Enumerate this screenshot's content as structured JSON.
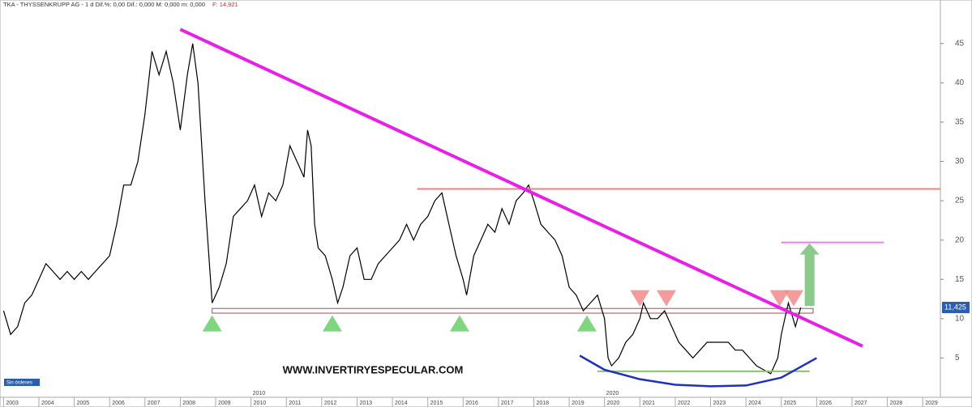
{
  "chart_data": {
    "type": "line",
    "title": "TKA - THYSSENKRUPP AG - 1 d  Dif.%: 0,00  Dif.: 0,000  M: 0,000  m: 0,000",
    "close_label": "F: 14,921",
    "watermark": "WWW.INVERTIRYESPECULAR.COM",
    "orders_label": "Sin órdenes",
    "era_labels": [
      {
        "x": 2010,
        "label": "2010"
      },
      {
        "x": 2020,
        "label": "2020"
      }
    ],
    "x": [
      2003.0,
      2003.2,
      2003.4,
      2003.6,
      2003.8,
      2004.0,
      2004.2,
      2004.4,
      2004.6,
      2004.8,
      2005.0,
      2005.2,
      2005.4,
      2005.6,
      2005.8,
      2006.0,
      2006.2,
      2006.4,
      2006.6,
      2006.8,
      2007.0,
      2007.2,
      2007.4,
      2007.6,
      2007.8,
      2008.0,
      2008.2,
      2008.35,
      2008.5,
      2008.7,
      2008.9,
      2009.1,
      2009.3,
      2009.5,
      2009.7,
      2009.9,
      2010.1,
      2010.3,
      2010.5,
      2010.7,
      2010.9,
      2011.1,
      2011.3,
      2011.5,
      2011.6,
      2011.7,
      2011.8,
      2011.9,
      2012.1,
      2012.3,
      2012.45,
      2012.6,
      2012.8,
      2013.0,
      2013.2,
      2013.4,
      2013.6,
      2013.8,
      2014.0,
      2014.2,
      2014.4,
      2014.6,
      2014.8,
      2015.0,
      2015.2,
      2015.4,
      2015.6,
      2015.8,
      2016.0,
      2016.1,
      2016.3,
      2016.5,
      2016.7,
      2016.9,
      2017.1,
      2017.3,
      2017.5,
      2017.7,
      2017.85,
      2018.0,
      2018.2,
      2018.4,
      2018.6,
      2018.8,
      2019.0,
      2019.2,
      2019.4,
      2019.6,
      2019.8,
      2020.0,
      2020.1,
      2020.2,
      2020.4,
      2020.6,
      2020.8,
      2021.0,
      2021.1,
      2021.3,
      2021.5,
      2021.7,
      2021.9,
      2022.1,
      2022.3,
      2022.5,
      2022.7,
      2022.9,
      2023.1,
      2023.3,
      2023.5,
      2023.7,
      2023.9,
      2024.1,
      2024.3,
      2024.5,
      2024.7,
      2024.9,
      2025.0,
      2025.1,
      2025.2,
      2025.4,
      2025.55
    ],
    "series": [
      {
        "name": "TKA",
        "color": "#000000",
        "values": [
          11,
          8,
          9,
          12,
          13,
          15,
          17,
          16,
          15,
          16,
          15,
          16,
          15,
          16,
          17,
          18,
          22,
          27,
          27,
          30,
          36,
          44,
          41,
          44,
          40,
          34,
          41,
          45,
          40,
          25,
          12,
          14,
          17,
          23,
          24,
          25,
          27,
          23,
          26,
          25,
          27,
          32,
          30,
          28,
          34,
          32,
          22,
          19,
          18,
          15,
          12,
          14,
          18,
          19,
          15,
          15,
          17,
          18,
          19,
          20,
          22,
          20,
          22,
          23,
          25,
          26,
          22,
          18,
          15,
          13,
          18,
          20,
          22,
          21,
          24,
          22,
          25,
          26,
          27,
          25,
          22,
          21,
          20,
          18,
          14,
          13,
          11,
          12,
          13,
          10,
          5,
          4,
          5,
          7,
          8,
          10,
          12,
          10,
          10,
          11,
          9,
          7,
          6,
          5,
          6,
          7,
          7,
          7,
          7,
          6,
          6,
          5,
          4,
          3.5,
          3,
          5,
          8,
          10,
          12,
          9,
          11.4
        ]
      }
    ],
    "last_price": {
      "value": 11.425,
      "label": "11,425"
    },
    "xlim": [
      2002.9,
      2029.5
    ],
    "ylim": [
      0,
      49.3
    ],
    "xticks": [
      2003,
      2004,
      2005,
      2006,
      2007,
      2008,
      2009,
      2010,
      2011,
      2012,
      2013,
      2014,
      2015,
      2016,
      2017,
      2018,
      2019,
      2020,
      2021,
      2022,
      2023,
      2024,
      2025,
      2026,
      2027,
      2028,
      2029
    ],
    "yticks": [
      5,
      10,
      15,
      20,
      25,
      30,
      35,
      40,
      45
    ],
    "grid": false,
    "trend_line": {
      "x": [
        2008.0,
        2027.3
      ],
      "y": [
        46.8,
        6.5
      ],
      "color": "#e81fe8"
    },
    "levels": [
      {
        "value": 26.5,
        "x": [
          2014.7,
          2029.5
        ],
        "color": "#f08080"
      },
      {
        "value": 19.7,
        "x": [
          2025.0,
          2027.9
        ],
        "color": "#f07af0"
      },
      {
        "value": 3.3,
        "x": [
          2019.8,
          2025.8
        ],
        "color": "#8cc26a"
      }
    ],
    "support_band": {
      "values": [
        10.7,
        11.3
      ],
      "x": [
        2008.9,
        2025.9
      ],
      "color": "#a05050"
    },
    "up_markers": {
      "x": [
        2008.9,
        2012.3,
        2015.9,
        2019.5
      ],
      "y": 9.3,
      "color": "#7fd67f"
    },
    "down_markers": {
      "x": [
        2021.0,
        2021.75,
        2024.95,
        2025.35
      ],
      "y": 12.6,
      "color": "#f48a8a"
    },
    "target_arrow": {
      "x": 2025.8,
      "y": [
        11.6,
        19.6
      ],
      "color": "#8cc98c"
    },
    "base_curve": {
      "x": [
        2019.3,
        2020.0,
        2021.0,
        2022.0,
        2023.0,
        2024.0,
        2025.0,
        2026.0
      ],
      "y": [
        5.3,
        3.5,
        2.3,
        1.6,
        1.4,
        1.5,
        2.5,
        5.0
      ],
      "color": "#1f2fc0"
    }
  }
}
